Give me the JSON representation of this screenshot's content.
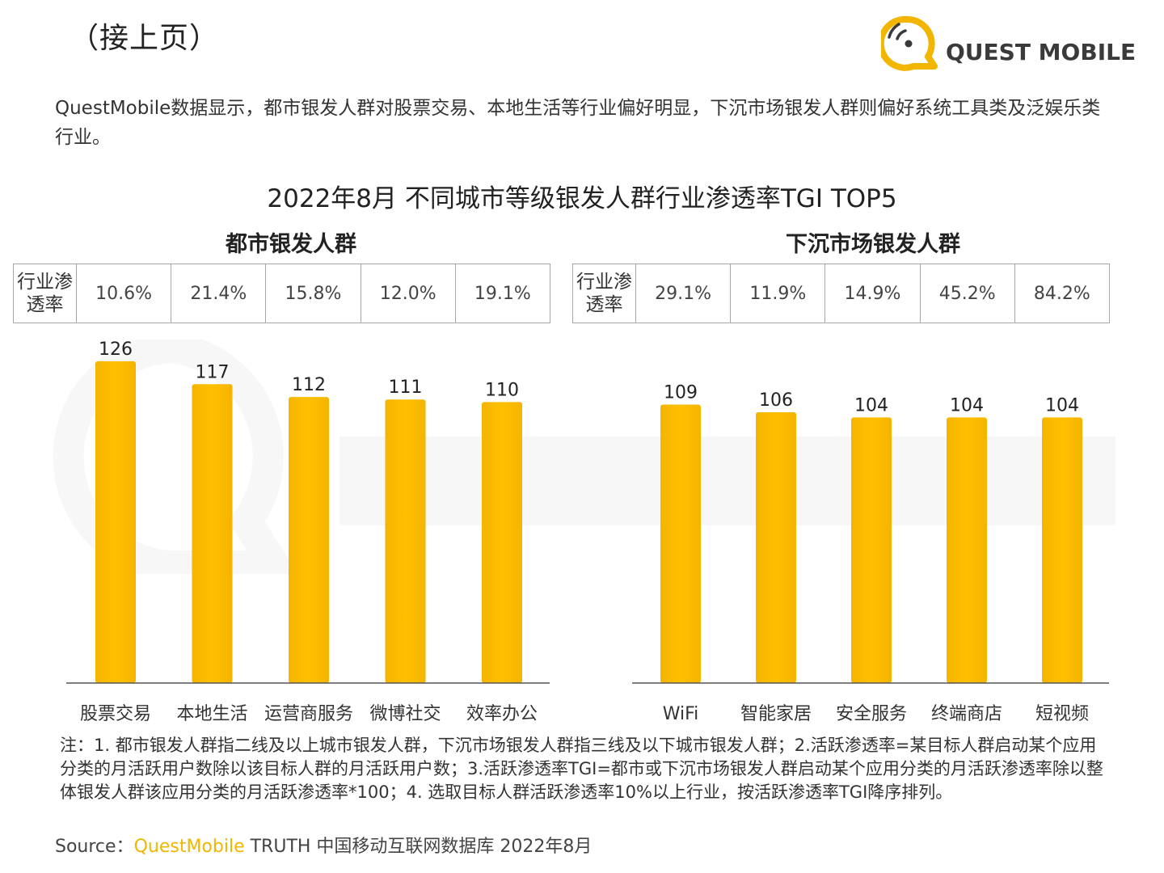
{
  "header": {
    "continued": "（接上页）"
  },
  "logo": {
    "text": "QUEST MOBILE"
  },
  "intro": "QuestMobile数据显示，都市银发人群对股票交易、本地生活等行业偏好明显，下沉市场银发人群则偏好系统工具类及泛娱乐类行业。",
  "colors": {
    "bar_top": "#ffc000",
    "bar_bottom": "#f5b400",
    "brand": "#f2b600",
    "axis": "#555555"
  },
  "chart_data": [
    {
      "type": "bar",
      "title": "2022年8月 不同城市等级银发人群行业渗透率TGI TOP5",
      "subtitle": "都市银发人群",
      "categories": [
        "股票交易",
        "本地生活",
        "运营商服务",
        "微博社交",
        "效率办公"
      ],
      "values": [
        126,
        117,
        112,
        111,
        110
      ],
      "table_label": "行业渗透率",
      "penetration": [
        "10.6%",
        "21.4%",
        "15.8%",
        "12.0%",
        "19.1%"
      ]
    },
    {
      "type": "bar",
      "subtitle": "下沉市场银发人群",
      "categories": [
        "WiFi",
        "智能家居",
        "安全服务",
        "终端商店",
        "短视频"
      ],
      "values": [
        109,
        106,
        104,
        104,
        104
      ],
      "table_label": "行业渗透率",
      "penetration": [
        "29.1%",
        "11.9%",
        "14.9%",
        "45.2%",
        "84.2%"
      ]
    }
  ],
  "notes": "注：1. 都市银发人群指二线及以上城市银发人群，下沉市场银发人群指三线及以下城市银发人群；2.活跃渗透率=某目标人群启动某个应用分类的月活跃用户数除以该目标人群的月活跃用户数；3.活跃渗透率TGI=都市或下沉市场银发人群启动某个应用分类的月活跃渗透率除以整体银发人群该应用分类的月活跃渗透率*100；4. 选取目标人群活跃渗透率10%以上行业，按活跃渗透率TGI降序排列。",
  "source": {
    "prefix": "Source：",
    "brand": "QuestMobile",
    "rest": " TRUTH 中国移动互联网数据库 2022年8月"
  }
}
